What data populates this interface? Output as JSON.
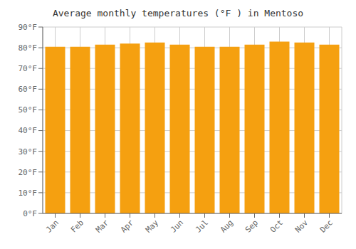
{
  "chart_data": {
    "type": "bar",
    "title": "Average monthly temperatures (°F ) in Mentoso",
    "categories": [
      "Jan",
      "Feb",
      "Mar",
      "Apr",
      "May",
      "Jun",
      "Jul",
      "Aug",
      "Sep",
      "Oct",
      "Nov",
      "Dec"
    ],
    "values": [
      80.5,
      80.5,
      81.5,
      82.0,
      82.5,
      81.5,
      80.5,
      80.5,
      81.5,
      83.0,
      82.5,
      81.5
    ],
    "color": "#F5A010",
    "ylim": [
      0,
      90
    ],
    "yticks": [
      {
        "value": 0,
        "label": "0°F"
      },
      {
        "value": 10,
        "label": "10°F"
      },
      {
        "value": 20,
        "label": "20°F"
      },
      {
        "value": 30,
        "label": "30°F"
      },
      {
        "value": 40,
        "label": "40°F"
      },
      {
        "value": 50,
        "label": "50°F"
      },
      {
        "value": 60,
        "label": "60°F"
      },
      {
        "value": 70,
        "label": "70°F"
      },
      {
        "value": 80,
        "label": "80°F"
      },
      {
        "value": 90,
        "label": "90°F"
      }
    ],
    "grid": true
  }
}
